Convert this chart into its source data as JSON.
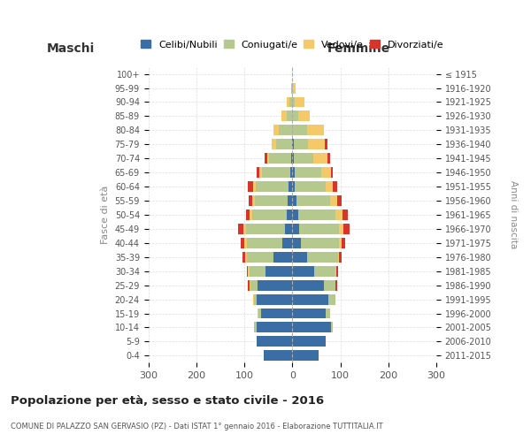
{
  "age_groups": [
    "100+",
    "95-99",
    "90-94",
    "85-89",
    "80-84",
    "75-79",
    "70-74",
    "65-69",
    "60-64",
    "55-59",
    "50-54",
    "45-49",
    "40-44",
    "35-39",
    "30-34",
    "25-29",
    "20-24",
    "15-19",
    "10-14",
    "5-9",
    "0-4"
  ],
  "birth_years": [
    "≤ 1915",
    "1916-1920",
    "1921-1925",
    "1926-1930",
    "1931-1935",
    "1936-1940",
    "1941-1945",
    "1946-1950",
    "1951-1955",
    "1956-1960",
    "1961-1965",
    "1966-1970",
    "1971-1975",
    "1976-1980",
    "1981-1985",
    "1986-1990",
    "1991-1995",
    "1996-2000",
    "2001-2005",
    "2006-2010",
    "2011-2015"
  ],
  "males_celibi": [
    0,
    0,
    0,
    0,
    1,
    1,
    3,
    4,
    8,
    10,
    12,
    15,
    20,
    40,
    55,
    72,
    75,
    65,
    75,
    75,
    60
  ],
  "males_coniugati": [
    0,
    2,
    6,
    12,
    28,
    32,
    45,
    60,
    68,
    68,
    72,
    82,
    75,
    55,
    35,
    15,
    5,
    5,
    5,
    0,
    0
  ],
  "males_vedovi": [
    0,
    0,
    5,
    10,
    10,
    10,
    5,
    5,
    5,
    5,
    5,
    5,
    5,
    3,
    2,
    2,
    2,
    2,
    0,
    0,
    0
  ],
  "males_divorziati": [
    0,
    0,
    0,
    0,
    0,
    0,
    5,
    5,
    12,
    8,
    8,
    12,
    8,
    5,
    3,
    3,
    0,
    0,
    0,
    0,
    0
  ],
  "females_nubili": [
    0,
    0,
    0,
    0,
    0,
    3,
    3,
    5,
    5,
    8,
    12,
    15,
    18,
    30,
    45,
    65,
    75,
    70,
    80,
    70,
    55
  ],
  "females_coniugate": [
    0,
    2,
    5,
    12,
    30,
    30,
    40,
    55,
    65,
    70,
    78,
    82,
    80,
    65,
    45,
    25,
    15,
    8,
    5,
    0,
    0
  ],
  "females_vedove": [
    0,
    5,
    20,
    25,
    35,
    35,
    30,
    20,
    15,
    15,
    15,
    10,
    5,
    3,
    2,
    0,
    0,
    0,
    0,
    0,
    0
  ],
  "females_divorziate": [
    0,
    0,
    0,
    0,
    0,
    5,
    5,
    5,
    8,
    10,
    10,
    12,
    8,
    5,
    3,
    3,
    0,
    0,
    0,
    0,
    0
  ],
  "colors": {
    "celibi": "#3a6ea5",
    "coniugati": "#b5c98e",
    "vedovi": "#f5c96a",
    "divorziati": "#d9342b"
  },
  "title": "Popolazione per età, sesso e stato civile - 2016",
  "subtitle": "COMUNE DI PALAZZO SAN GERVASIO (PZ) - Dati ISTAT 1° gennaio 2016 - Elaborazione TUTTITALIA.IT",
  "xlabel_left": "Maschi",
  "xlabel_right": "Femmine",
  "ylabel_left": "Fasce di età",
  "ylabel_right": "Anni di nascita",
  "xlim": 300,
  "legend_labels": [
    "Celibi/Nubili",
    "Coniugati/e",
    "Vedovi/e",
    "Divorziati/e"
  ],
  "bg_color": "#ffffff",
  "grid_color": "#cccccc"
}
